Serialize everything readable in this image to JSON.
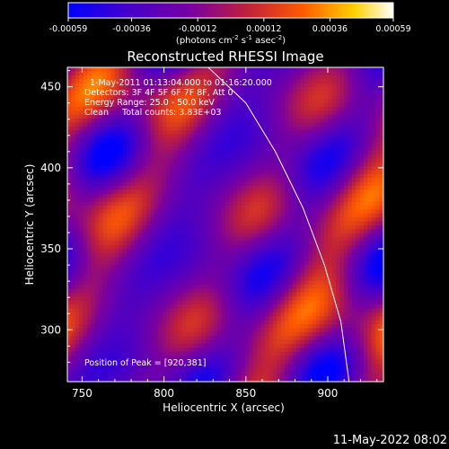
{
  "chart_data": {
    "type": "heatmap",
    "title": "Reconstructed RHESSI Image",
    "xlabel": "Heliocentric X (arcsec)",
    "ylabel": "Heliocentric Y (arcsec)",
    "xlim": [
      741,
      934
    ],
    "ylim": [
      268,
      462
    ],
    "x_ticks": [
      "750",
      "800",
      "850",
      "900"
    ],
    "y_ticks": [
      "300",
      "350",
      "400",
      "450"
    ],
    "x_tick_values": [
      750,
      800,
      850,
      900
    ],
    "y_tick_values": [
      300,
      350,
      400,
      450
    ],
    "colorbar": {
      "min": -0.00059,
      "max": 0.00059,
      "tick_labels": [
        "-0.00059",
        "-0.00036",
        "-0.00012",
        "0.00012",
        "0.00036",
        "0.00059"
      ],
      "tick_values": [
        -0.00059,
        -0.00036,
        -0.00012,
        0.00012,
        0.00036,
        0.00059
      ],
      "unit_label": "(photons cm",
      "unit_exp1": "-2",
      "unit_mid": " s",
      "unit_exp2": "-1",
      "unit_mid2": " asec",
      "unit_exp3": "-2",
      "unit_end": ")",
      "colors": [
        "#0000ff",
        "#4400cc",
        "#7a00a0",
        "#c0203a",
        "#ff5a00",
        "#ffd000",
        "#ffffff"
      ]
    },
    "annotations": [
      "1-May-2011 01:13:04.000 to 01:16:20.000",
      "Detectors: 3F 4F 5F 6F 7F 8F, Att 0",
      "Energy Range: 25.0 - 50.0 keV",
      "Clean     Total counts: 3.83E+03"
    ],
    "peak_label": "Position of Peak = [920,381]",
    "peak": [
      920,
      381
    ],
    "limb": [
      [
        827,
        462
      ],
      [
        850,
        440
      ],
      [
        868,
        410
      ],
      [
        885,
        375
      ],
      [
        898,
        340
      ],
      [
        908,
        305
      ],
      [
        913,
        268
      ]
    ]
  },
  "footer": {
    "timestamp": "11-May-2022 08:02"
  }
}
